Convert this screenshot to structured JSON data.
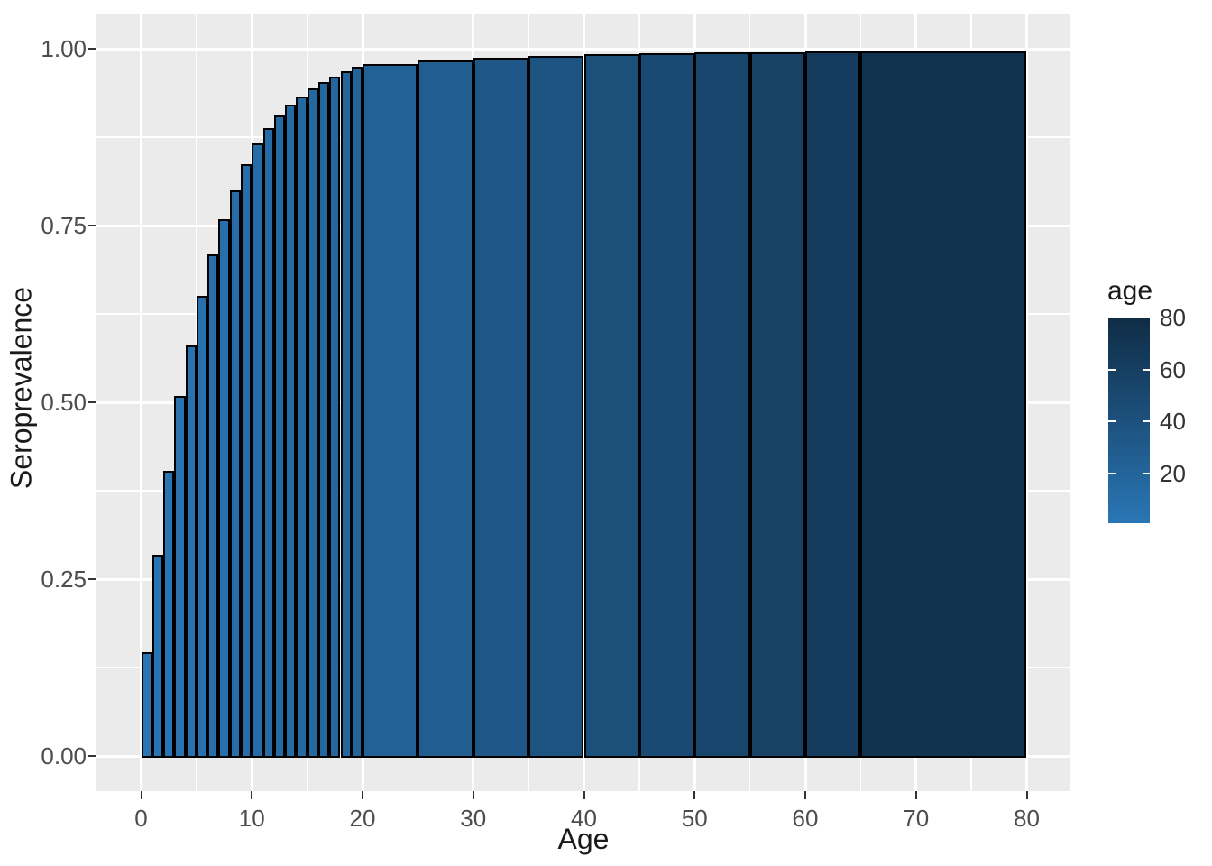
{
  "figure": {
    "background": "#FFFFFF"
  },
  "panel": {
    "background": "#EBEBEB",
    "grid_color": "#FFFFFF"
  },
  "colors": {
    "bar_fill_low": "#2A76B5",
    "bar_fill_high": "#0F2C45",
    "bar_stroke": "#000000",
    "tick_mark": "#333333",
    "tick_label": "#4D4D4D",
    "title": "#1A1A1A"
  },
  "x_axis": {
    "title": "Age",
    "tick_labels": [
      "0",
      "10",
      "20",
      "30",
      "40",
      "50",
      "60",
      "70",
      "80"
    ],
    "tick_values": [
      0,
      10,
      20,
      30,
      40,
      50,
      60,
      70,
      80
    ],
    "minor_tick_values": [
      5,
      15,
      25,
      35,
      45,
      55,
      65,
      75
    ],
    "range": [
      0,
      80
    ]
  },
  "y_axis": {
    "title": "Seroprevalence",
    "tick_labels": [
      "0.00",
      "0.25",
      "0.50",
      "0.75",
      "1.00"
    ],
    "tick_values": [
      0,
      0.25,
      0.5,
      0.75,
      1.0
    ],
    "minor_tick_values": [
      0.125,
      0.375,
      0.625,
      0.875
    ],
    "range": [
      0,
      1
    ]
  },
  "legend": {
    "title": "age",
    "tick_labels": [
      "80",
      "60",
      "40",
      "20"
    ],
    "tick_values": [
      80,
      60,
      40,
      20
    ],
    "value_range": [
      1,
      80
    ],
    "gradient_low_color": "#2A76B5",
    "gradient_high_color": "#0F2C45"
  },
  "chart_data": {
    "type": "bar",
    "title": "",
    "xlabel": "Age",
    "ylabel": "Seroprevalence",
    "xlim": [
      0,
      80
    ],
    "ylim": [
      0,
      1
    ],
    "grid": true,
    "legend_position": "right",
    "fill_encoding": "age (bar midpoint), continuous blue gradient #2A76B5 (young) to #0F2C45 (old)",
    "bars": [
      {
        "age_from": 0,
        "age_to": 1,
        "seroprevalence": 0.147
      },
      {
        "age_from": 1,
        "age_to": 2,
        "seroprevalence": 0.285
      },
      {
        "age_from": 2,
        "age_to": 3,
        "seroprevalence": 0.403
      },
      {
        "age_from": 3,
        "age_to": 4,
        "seroprevalence": 0.509
      },
      {
        "age_from": 4,
        "age_to": 5,
        "seroprevalence": 0.58
      },
      {
        "age_from": 5,
        "age_to": 6,
        "seroprevalence": 0.65
      },
      {
        "age_from": 6,
        "age_to": 7,
        "seroprevalence": 0.709
      },
      {
        "age_from": 7,
        "age_to": 8,
        "seroprevalence": 0.759
      },
      {
        "age_from": 8,
        "age_to": 9,
        "seroprevalence": 0.8
      },
      {
        "age_from": 9,
        "age_to": 10,
        "seroprevalence": 0.837
      },
      {
        "age_from": 10,
        "age_to": 11,
        "seroprevalence": 0.866
      },
      {
        "age_from": 11,
        "age_to": 12,
        "seroprevalence": 0.888
      },
      {
        "age_from": 12,
        "age_to": 13,
        "seroprevalence": 0.906
      },
      {
        "age_from": 13,
        "age_to": 14,
        "seroprevalence": 0.921
      },
      {
        "age_from": 14,
        "age_to": 15,
        "seroprevalence": 0.933
      },
      {
        "age_from": 15,
        "age_to": 16,
        "seroprevalence": 0.944
      },
      {
        "age_from": 16,
        "age_to": 17,
        "seroprevalence": 0.953
      },
      {
        "age_from": 17,
        "age_to": 18,
        "seroprevalence": 0.961
      },
      {
        "age_from": 18,
        "age_to": 19,
        "seroprevalence": 0.968
      },
      {
        "age_from": 19,
        "age_to": 20,
        "seroprevalence": 0.974
      },
      {
        "age_from": 20,
        "age_to": 25,
        "seroprevalence": 0.978
      },
      {
        "age_from": 25,
        "age_to": 30,
        "seroprevalence": 0.9835
      },
      {
        "age_from": 30,
        "age_to": 35,
        "seroprevalence": 0.9875
      },
      {
        "age_from": 35,
        "age_to": 40,
        "seroprevalence": 0.99
      },
      {
        "age_from": 40,
        "age_to": 45,
        "seroprevalence": 0.992
      },
      {
        "age_from": 45,
        "age_to": 50,
        "seroprevalence": 0.9935
      },
      {
        "age_from": 50,
        "age_to": 55,
        "seroprevalence": 0.9945
      },
      {
        "age_from": 55,
        "age_to": 60,
        "seroprevalence": 0.9955
      },
      {
        "age_from": 60,
        "age_to": 65,
        "seroprevalence": 0.996
      },
      {
        "age_from": 65,
        "age_to": 80,
        "seroprevalence": 0.9965
      }
    ]
  }
}
